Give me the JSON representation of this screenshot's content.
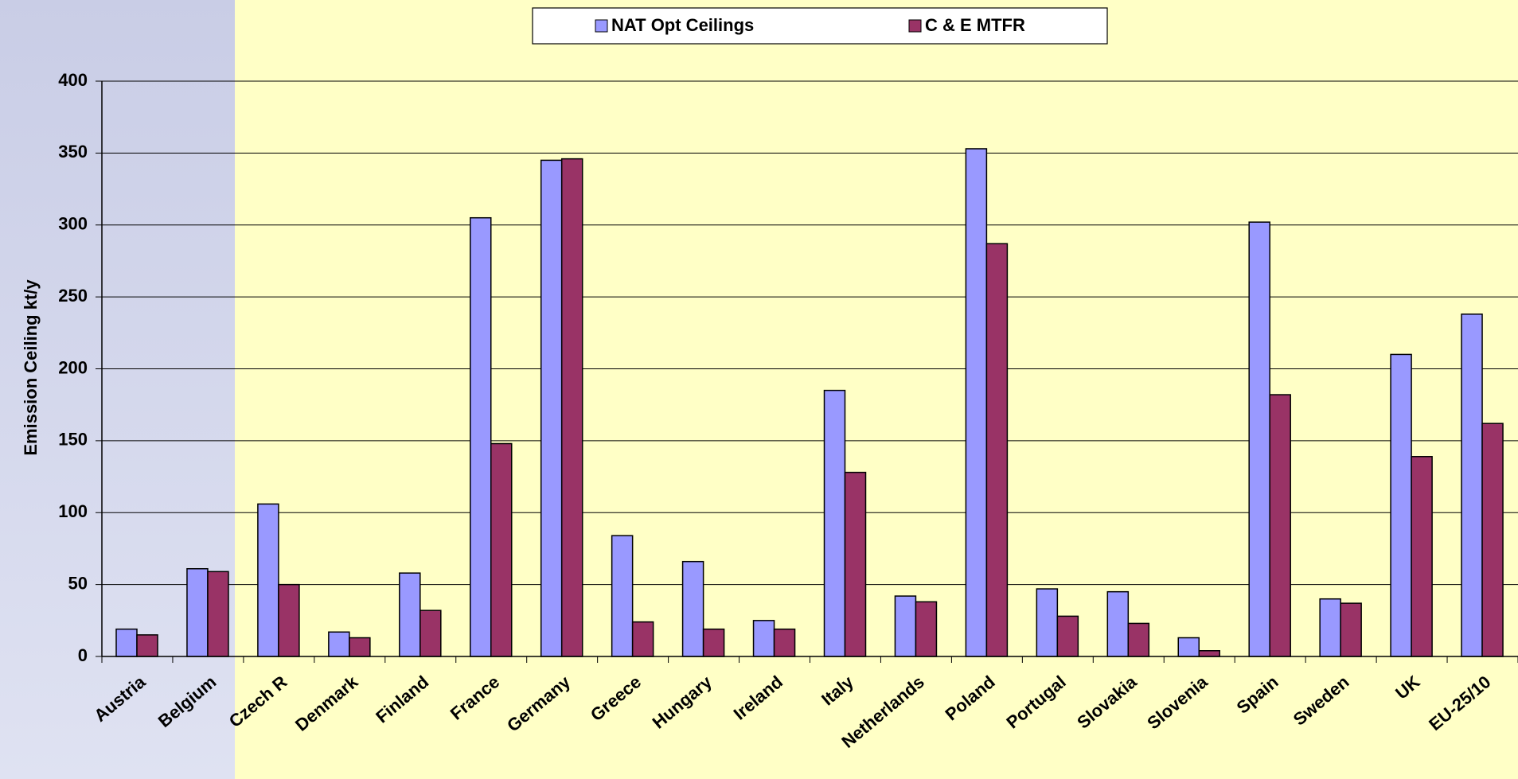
{
  "chart_data": {
    "type": "bar",
    "y_label": "Emission Ceiling kt/y",
    "categories": [
      "Austria",
      "Belgium",
      "Czech R",
      "Denmark",
      "Finland",
      "France",
      "Germany",
      "Greece",
      "Hungary",
      "Ireland",
      "Italy",
      "Netherlands",
      "Poland",
      "Portugal",
      "Slovakia",
      "Slovenia",
      "Spain",
      "Sweden",
      "UK",
      "EU-25/10"
    ],
    "series": [
      {
        "name": "NAT Opt Ceilings",
        "color": "#9999ff",
        "values": [
          19,
          61,
          106,
          17,
          58,
          305,
          345,
          84,
          66,
          25,
          185,
          42,
          353,
          47,
          45,
          13,
          302,
          40,
          210,
          238
        ]
      },
      {
        "name": "C & E MTFR",
        "color": "#993366",
        "values": [
          15,
          59,
          50,
          13,
          32,
          148,
          346,
          24,
          19,
          19,
          128,
          38,
          287,
          28,
          23,
          4,
          182,
          37,
          139,
          162
        ]
      }
    ],
    "ylim": [
      0,
      400
    ],
    "yticks": [
      0,
      50,
      100,
      150,
      200,
      250,
      300,
      350,
      400
    ],
    "grid": true,
    "legend": "top"
  }
}
